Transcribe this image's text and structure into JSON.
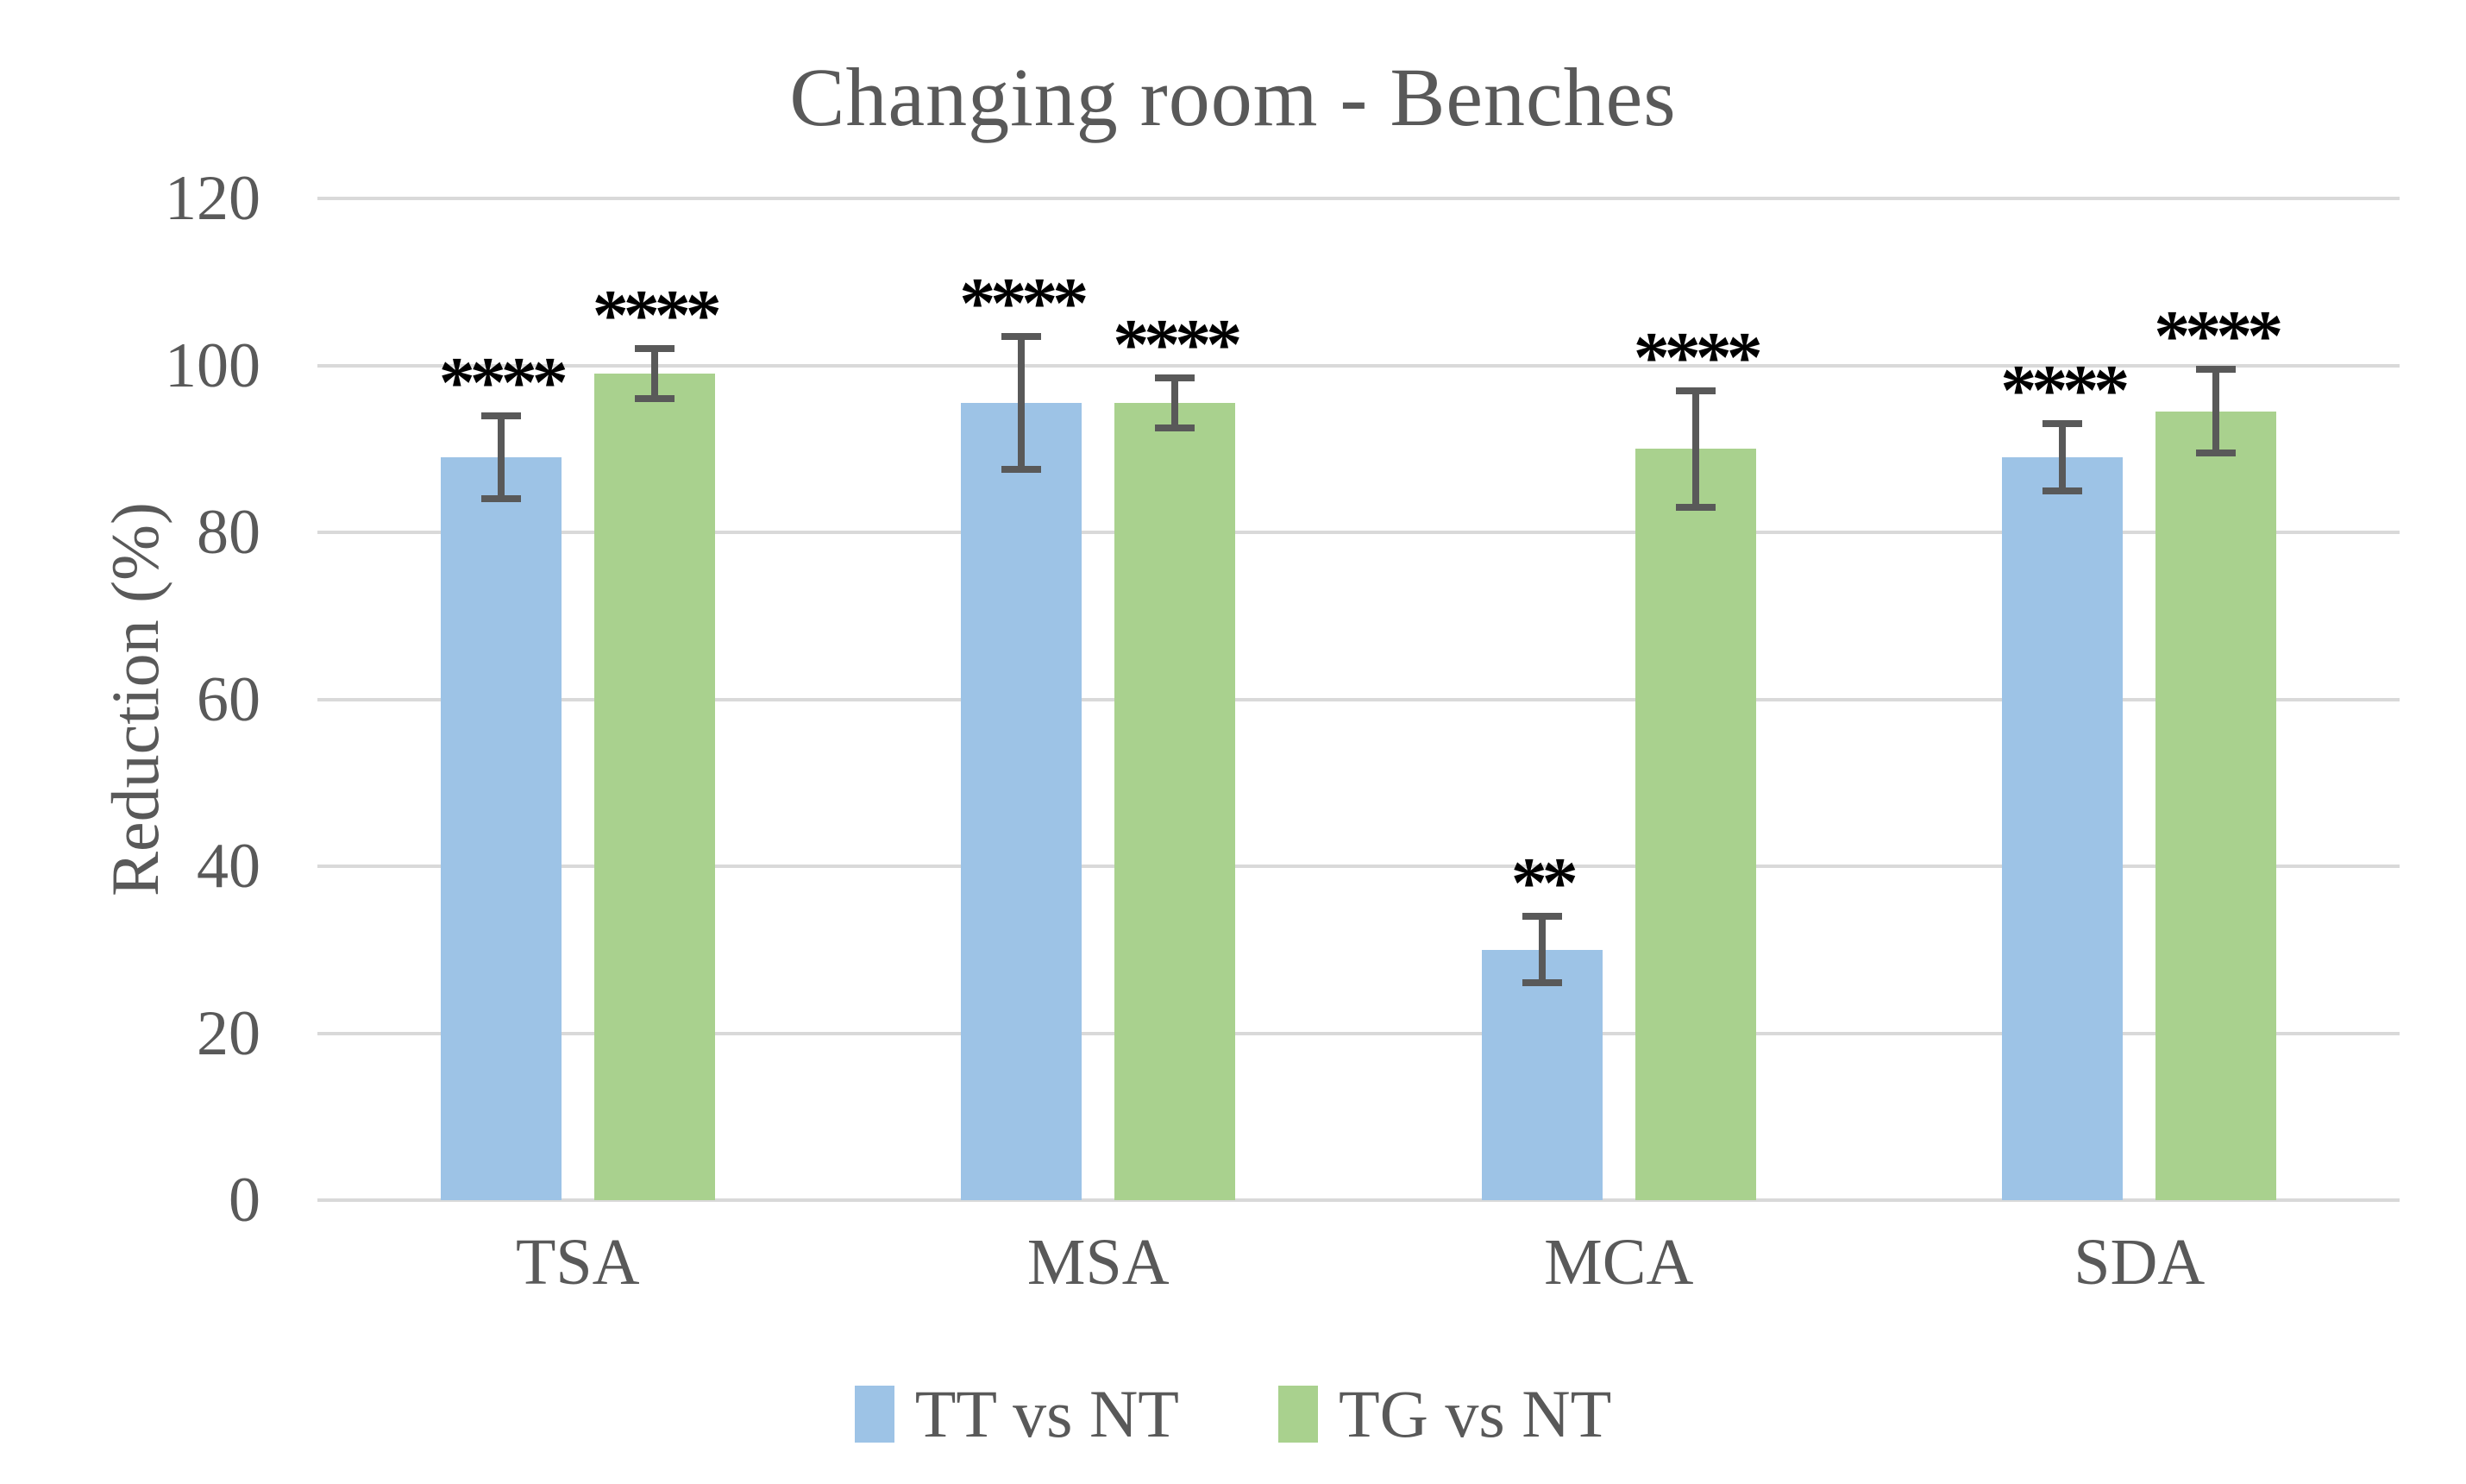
{
  "title": "Changing room - Benches",
  "chart_data": {
    "type": "bar",
    "title": "Changing room - Benches",
    "ylabel": "Reduction (%)",
    "xlabel": "",
    "categories": [
      "TSA",
      "MSA",
      "MCA",
      "SDA"
    ],
    "series": [
      {
        "name": "TT vs NT",
        "color": "#9DC3E6",
        "values": [
          89,
          95.5,
          30,
          89
        ],
        "errors": [
          5,
          8,
          4,
          4
        ],
        "significance": [
          "****",
          "****",
          "**",
          "****"
        ]
      },
      {
        "name": "TG vs NT",
        "color": "#A9D18E",
        "values": [
          99,
          95.5,
          90,
          94.5
        ],
        "errors": [
          3,
          3,
          7,
          5
        ],
        "significance": [
          "****",
          "****",
          "****",
          "****"
        ]
      }
    ],
    "ylim": [
      0,
      120
    ],
    "yticks": [
      0,
      20,
      40,
      60,
      80,
      100,
      120
    ],
    "grid": true,
    "legend_position": "bottom"
  },
  "style": {
    "background": "#FFFFFF",
    "text_color": "#595959",
    "grid_color": "#D9D9D9",
    "error_bar_color": "#595959",
    "significance_color": "#000000"
  }
}
